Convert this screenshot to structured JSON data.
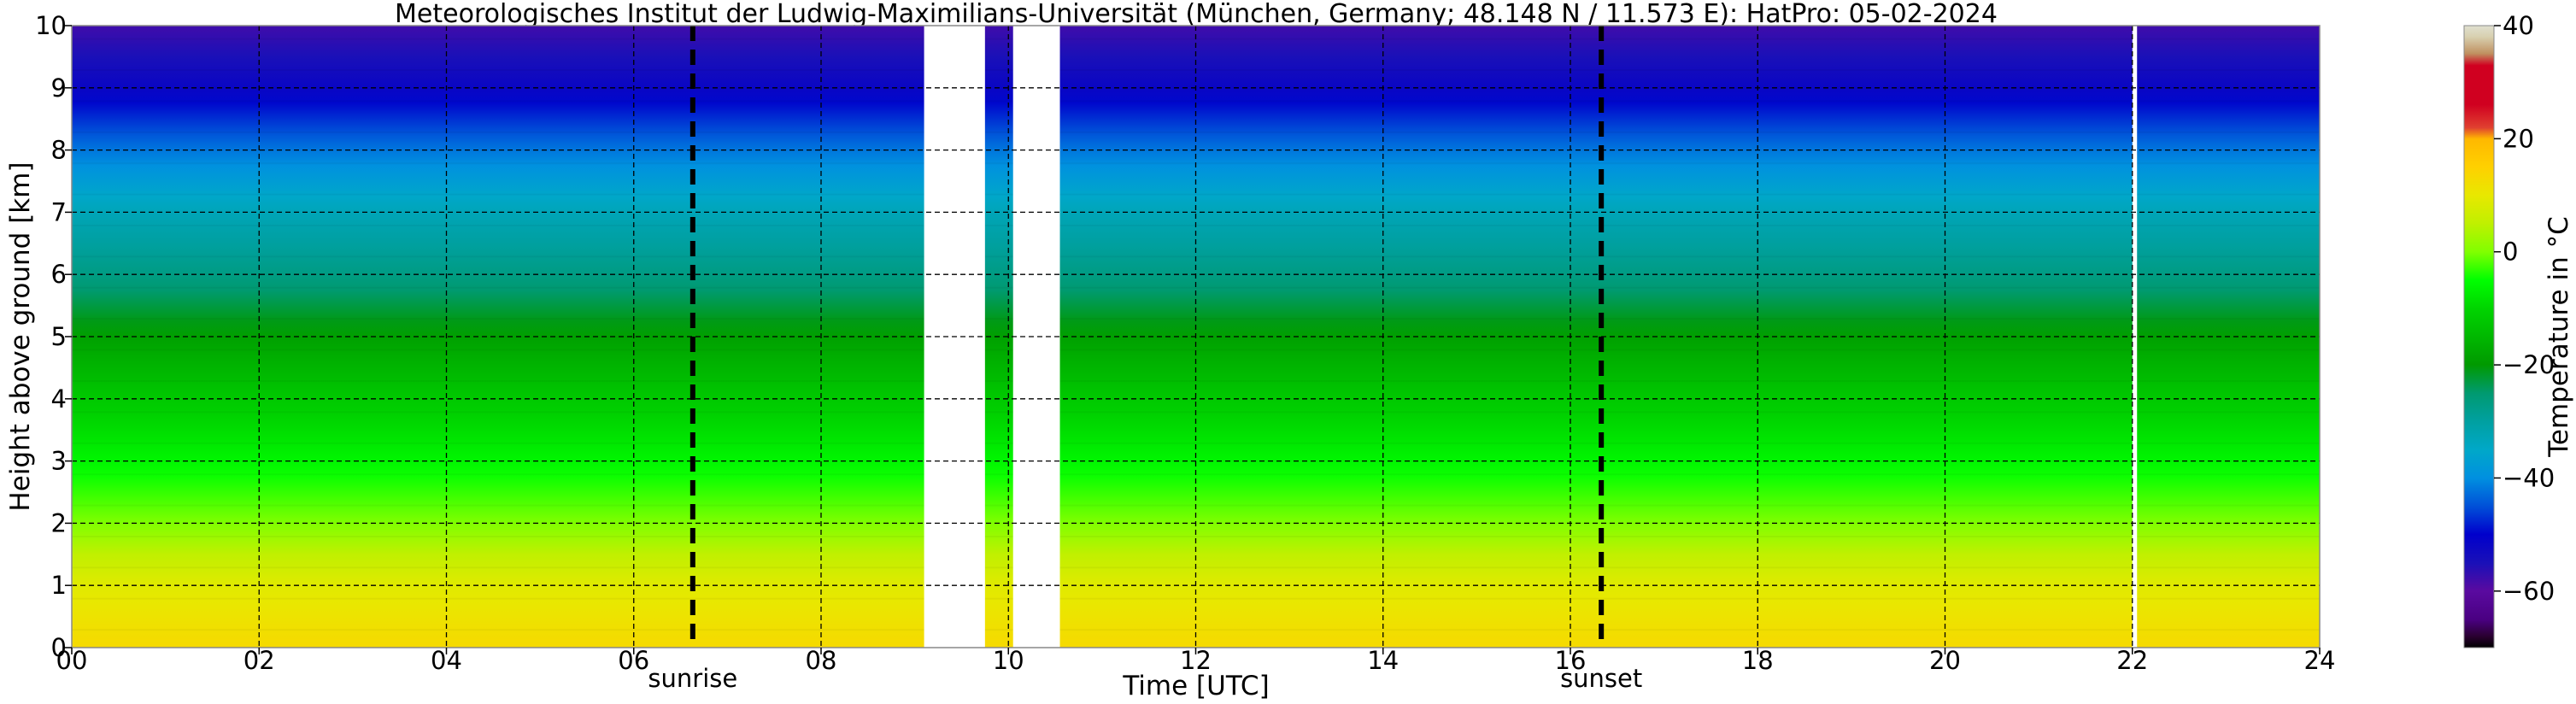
{
  "chart_data": {
    "type": "heatmap",
    "title": "Meteorologisches Institut der Ludwig-Maximilians-Universität (München, Germany; 48.148 N / 11.573 E):    HatPro: 05-02-2024",
    "xlabel": "Time [UTC]",
    "ylabel": "Height above ground [km]",
    "colorbar_label": "Temperature in $^\\circ$C",
    "colorbar_label_display": "Temperature in °C",
    "xlim": [
      0,
      24
    ],
    "ylim": [
      0,
      10
    ],
    "x_ticks": [
      0,
      2,
      4,
      6,
      8,
      10,
      12,
      14,
      16,
      18,
      20,
      22,
      24
    ],
    "x_tick_labels": [
      "00",
      "02",
      "04",
      "06",
      "08",
      "10",
      "12",
      "14",
      "16",
      "18",
      "20",
      "22",
      "24"
    ],
    "y_ticks": [
      0,
      1,
      2,
      3,
      4,
      5,
      6,
      7,
      8,
      9,
      10
    ],
    "y_tick_labels": [
      "0",
      "1",
      "2",
      "3",
      "4",
      "5",
      "6",
      "7",
      "8",
      "9",
      "10"
    ],
    "grid": true,
    "colorbar": {
      "range": [
        -70,
        40
      ],
      "ticks": [
        -60,
        -40,
        -20,
        0,
        20,
        40
      ],
      "tick_labels": [
        "−60",
        "−40",
        "−20",
        "0",
        "20",
        "40"
      ],
      "stops": [
        {
          "t": -70,
          "color": "#000000"
        },
        {
          "t": -68,
          "color": "#2a0030"
        },
        {
          "t": -65,
          "color": "#4a0082"
        },
        {
          "t": -60,
          "color": "#5a0aa0"
        },
        {
          "t": -55,
          "color": "#1a10b8"
        },
        {
          "t": -50,
          "color": "#0000cc"
        },
        {
          "t": -45,
          "color": "#0050d8"
        },
        {
          "t": -40,
          "color": "#0090e0"
        },
        {
          "t": -35,
          "color": "#00a8c8"
        },
        {
          "t": -30,
          "color": "#00a0a0"
        },
        {
          "t": -25,
          "color": "#009a70"
        },
        {
          "t": -20,
          "color": "#009a00"
        },
        {
          "t": -15,
          "color": "#00b800"
        },
        {
          "t": -10,
          "color": "#00d400"
        },
        {
          "t": -5,
          "color": "#00ff00"
        },
        {
          "t": 0,
          "color": "#80ff00"
        },
        {
          "t": 5,
          "color": "#c0f000"
        },
        {
          "t": 10,
          "color": "#e8e800"
        },
        {
          "t": 15,
          "color": "#ffd000"
        },
        {
          "t": 20,
          "color": "#ffb800"
        },
        {
          "t": 22,
          "color": "#e04030"
        },
        {
          "t": 26,
          "color": "#d00020"
        },
        {
          "t": 33,
          "color": "#d00020"
        },
        {
          "t": 35,
          "color": "#c09060"
        },
        {
          "t": 38,
          "color": "#d8d0b0"
        },
        {
          "t": 40,
          "color": "#e0e0d0"
        }
      ]
    },
    "profile": {
      "heights_km": [
        0,
        0.5,
        1,
        1.5,
        2,
        3,
        4,
        5,
        6,
        7,
        8,
        9,
        10
      ],
      "temperature_c": [
        13,
        11,
        9,
        5,
        0,
        -6,
        -12,
        -19,
        -27,
        -33,
        -42,
        -52,
        -58
      ]
    },
    "data_gaps_utc": [
      [
        9.1,
        9.75
      ],
      [
        10.05,
        10.55
      ],
      [
        22.0,
        22.05
      ]
    ],
    "vertical_lines": [
      {
        "x": 6.63,
        "label": "sunrise",
        "style": "dashed"
      },
      {
        "x": 16.33,
        "label": "sunset",
        "style": "dashed"
      }
    ]
  }
}
